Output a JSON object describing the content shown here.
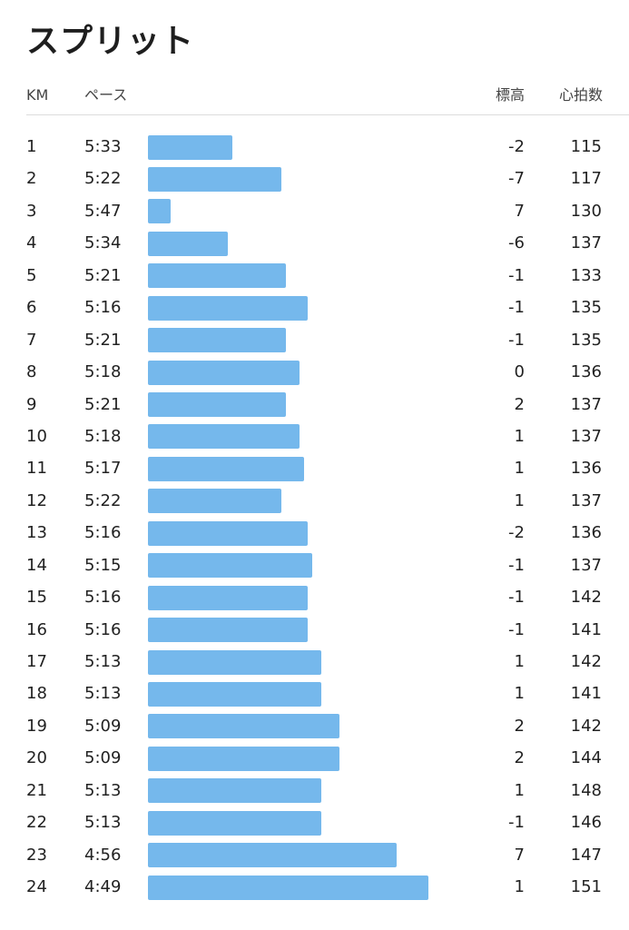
{
  "title": "スプリット",
  "columns": {
    "km": "KM",
    "pace": "ペース",
    "elevation": "標高",
    "heart_rate": "心拍数"
  },
  "colors": {
    "bar": "#75b8ec"
  },
  "splits": [
    {
      "km": "1",
      "pace": "5:33",
      "elevation": "-2",
      "heart_rate": "115"
    },
    {
      "km": "2",
      "pace": "5:22",
      "elevation": "-7",
      "heart_rate": "117"
    },
    {
      "km": "3",
      "pace": "5:47",
      "elevation": "7",
      "heart_rate": "130"
    },
    {
      "km": "4",
      "pace": "5:34",
      "elevation": "-6",
      "heart_rate": "137"
    },
    {
      "km": "5",
      "pace": "5:21",
      "elevation": "-1",
      "heart_rate": "133"
    },
    {
      "km": "6",
      "pace": "5:16",
      "elevation": "-1",
      "heart_rate": "135"
    },
    {
      "km": "7",
      "pace": "5:21",
      "elevation": "-1",
      "heart_rate": "135"
    },
    {
      "km": "8",
      "pace": "5:18",
      "elevation": "0",
      "heart_rate": "136"
    },
    {
      "km": "9",
      "pace": "5:21",
      "elevation": "2",
      "heart_rate": "137"
    },
    {
      "km": "10",
      "pace": "5:18",
      "elevation": "1",
      "heart_rate": "137"
    },
    {
      "km": "11",
      "pace": "5:17",
      "elevation": "1",
      "heart_rate": "136"
    },
    {
      "km": "12",
      "pace": "5:22",
      "elevation": "1",
      "heart_rate": "137"
    },
    {
      "km": "13",
      "pace": "5:16",
      "elevation": "-2",
      "heart_rate": "136"
    },
    {
      "km": "14",
      "pace": "5:15",
      "elevation": "-1",
      "heart_rate": "137"
    },
    {
      "km": "15",
      "pace": "5:16",
      "elevation": "-1",
      "heart_rate": "142"
    },
    {
      "km": "16",
      "pace": "5:16",
      "elevation": "-1",
      "heart_rate": "141"
    },
    {
      "km": "17",
      "pace": "5:13",
      "elevation": "1",
      "heart_rate": "142"
    },
    {
      "km": "18",
      "pace": "5:13",
      "elevation": "1",
      "heart_rate": "141"
    },
    {
      "km": "19",
      "pace": "5:09",
      "elevation": "2",
      "heart_rate": "142"
    },
    {
      "km": "20",
      "pace": "5:09",
      "elevation": "2",
      "heart_rate": "144"
    },
    {
      "km": "21",
      "pace": "5:13",
      "elevation": "1",
      "heart_rate": "148"
    },
    {
      "km": "22",
      "pace": "5:13",
      "elevation": "-1",
      "heart_rate": "146"
    },
    {
      "km": "23",
      "pace": "4:56",
      "elevation": "7",
      "heart_rate": "147"
    },
    {
      "km": "24",
      "pace": "4:49",
      "elevation": "1",
      "heart_rate": "151"
    }
  ]
}
